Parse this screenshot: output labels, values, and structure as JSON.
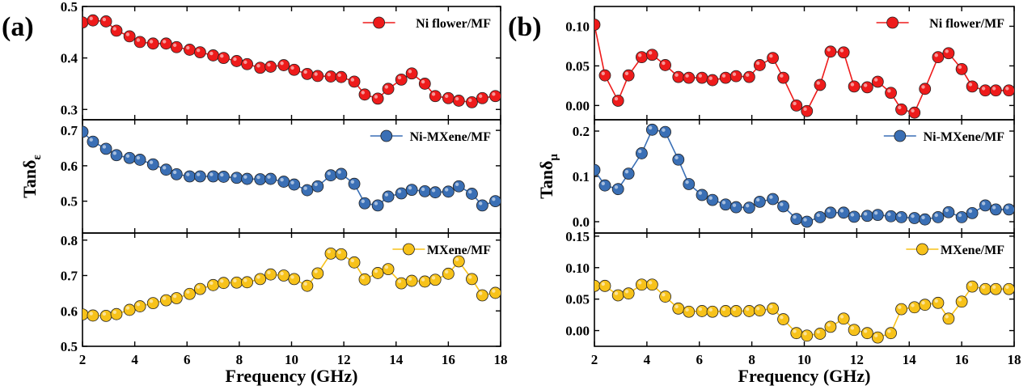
{
  "panels": [
    {
      "label": "(a)",
      "ylabel_main": "Tanδ",
      "ylabel_sub": "ε",
      "xlabel": "Frequency (GHz)"
    },
    {
      "label": "(b)",
      "ylabel_main": "Tanδ",
      "ylabel_sub": "μ",
      "xlabel": "Frequency (GHz)"
    }
  ],
  "colors": {
    "Ni flower/MF": "#ee1b1b",
    "Ni-MXene/MF": "#3a6fb5",
    "MXene/MF": "#f7c21a"
  },
  "chart_data": [
    {
      "type": "line",
      "panel": "(a)",
      "xlabel": "Frequency (GHz)",
      "xlim": [
        2,
        18
      ],
      "xticks": [
        2,
        4,
        6,
        8,
        10,
        12,
        14,
        16,
        18
      ],
      "subplots": [
        {
          "name": "Ni flower/MF",
          "ylim": [
            0.28,
            0.5
          ],
          "yticks": [
            "0.3",
            "0.4",
            "0.5"
          ],
          "legend": "top-right",
          "x": [
            2.0,
            2.4,
            2.9,
            3.3,
            3.8,
            4.2,
            4.7,
            5.2,
            5.6,
            6.1,
            6.5,
            7.0,
            7.4,
            7.9,
            8.3,
            8.8,
            9.2,
            9.7,
            10.1,
            10.6,
            11.0,
            11.5,
            11.9,
            12.4,
            12.8,
            13.3,
            13.7,
            14.2,
            14.6,
            15.1,
            15.5,
            16.0,
            16.4,
            16.9,
            17.3,
            17.8
          ],
          "values": [
            0.469,
            0.473,
            0.471,
            0.453,
            0.442,
            0.431,
            0.428,
            0.428,
            0.421,
            0.416,
            0.411,
            0.405,
            0.4,
            0.394,
            0.388,
            0.381,
            0.383,
            0.386,
            0.377,
            0.369,
            0.365,
            0.364,
            0.363,
            0.354,
            0.329,
            0.321,
            0.34,
            0.358,
            0.37,
            0.35,
            0.326,
            0.322,
            0.317,
            0.314,
            0.322,
            0.326
          ]
        },
        {
          "name": "Ni-MXene/MF",
          "ylim": [
            0.41,
            0.73
          ],
          "yticks": [
            "0.5",
            "0.6",
            "0.7"
          ],
          "legend": "top-right",
          "x": [
            2.0,
            2.4,
            2.9,
            3.3,
            3.8,
            4.2,
            4.7,
            5.2,
            5.6,
            6.1,
            6.5,
            7.0,
            7.4,
            7.9,
            8.3,
            8.8,
            9.2,
            9.7,
            10.1,
            10.6,
            11.0,
            11.5,
            11.9,
            12.4,
            12.8,
            13.3,
            13.7,
            14.2,
            14.6,
            15.1,
            15.5,
            16.0,
            16.4,
            16.9,
            17.3,
            17.8
          ],
          "values": [
            0.696,
            0.668,
            0.648,
            0.63,
            0.622,
            0.617,
            0.604,
            0.589,
            0.576,
            0.57,
            0.57,
            0.57,
            0.569,
            0.566,
            0.563,
            0.562,
            0.563,
            0.555,
            0.547,
            0.531,
            0.542,
            0.573,
            0.577,
            0.549,
            0.494,
            0.488,
            0.513,
            0.522,
            0.532,
            0.528,
            0.525,
            0.527,
            0.542,
            0.521,
            0.488,
            0.5
          ]
        },
        {
          "name": "MXene/MF",
          "ylim": [
            0.5,
            0.82
          ],
          "yticks": [
            "0.5",
            "0.6",
            "0.7",
            "0.8"
          ],
          "legend": "top-right",
          "x": [
            2.0,
            2.4,
            2.9,
            3.3,
            3.8,
            4.2,
            4.7,
            5.2,
            5.6,
            6.1,
            6.5,
            7.0,
            7.4,
            7.9,
            8.3,
            8.8,
            9.2,
            9.7,
            10.1,
            10.6,
            11.0,
            11.5,
            11.9,
            12.4,
            12.8,
            13.3,
            13.7,
            14.2,
            14.6,
            15.1,
            15.5,
            16.0,
            16.4,
            16.9,
            17.3,
            17.8
          ],
          "values": [
            0.59,
            0.587,
            0.586,
            0.591,
            0.603,
            0.613,
            0.622,
            0.63,
            0.636,
            0.648,
            0.662,
            0.673,
            0.679,
            0.68,
            0.681,
            0.69,
            0.703,
            0.7,
            0.69,
            0.671,
            0.706,
            0.762,
            0.76,
            0.737,
            0.689,
            0.707,
            0.718,
            0.678,
            0.685,
            0.683,
            0.688,
            0.705,
            0.74,
            0.69,
            0.644,
            0.651
          ]
        }
      ]
    },
    {
      "type": "line",
      "panel": "(b)",
      "xlabel": "Frequency (GHz)",
      "xlim": [
        2,
        18
      ],
      "xticks": [
        2,
        4,
        6,
        8,
        10,
        12,
        14,
        16,
        18
      ],
      "subplots": [
        {
          "name": "Ni flower/MF",
          "ylim": [
            -0.018,
            0.125
          ],
          "yticks": [
            "0.00",
            "0.05",
            "0.10"
          ],
          "legend": "top-right",
          "x": [
            2.0,
            2.4,
            2.9,
            3.3,
            3.8,
            4.2,
            4.7,
            5.2,
            5.6,
            6.1,
            6.5,
            7.0,
            7.4,
            7.9,
            8.3,
            8.8,
            9.2,
            9.7,
            10.1,
            10.6,
            11.0,
            11.5,
            11.9,
            12.4,
            12.8,
            13.3,
            13.7,
            14.2,
            14.6,
            15.1,
            15.5,
            16.0,
            16.4,
            16.9,
            17.3,
            17.8
          ],
          "values": [
            0.102,
            0.038,
            0.006,
            0.038,
            0.061,
            0.064,
            0.051,
            0.036,
            0.035,
            0.035,
            0.032,
            0.035,
            0.037,
            0.036,
            0.051,
            0.06,
            0.035,
            0.0,
            -0.007,
            0.026,
            0.068,
            0.067,
            0.024,
            0.023,
            0.03,
            0.016,
            -0.005,
            -0.009,
            0.021,
            0.061,
            0.066,
            0.046,
            0.024,
            0.019,
            0.019,
            0.019
          ]
        },
        {
          "name": "Ni-MXene/MF",
          "ylim": [
            -0.025,
            0.225
          ],
          "yticks": [
            "0.0",
            "0.1",
            "0.2"
          ],
          "legend": "top-right",
          "x": [
            2.0,
            2.4,
            2.9,
            3.3,
            3.8,
            4.2,
            4.7,
            5.2,
            5.6,
            6.1,
            6.5,
            7.0,
            7.4,
            7.9,
            8.3,
            8.8,
            9.2,
            9.7,
            10.1,
            10.6,
            11.0,
            11.5,
            11.9,
            12.4,
            12.8,
            13.3,
            13.7,
            14.2,
            14.6,
            15.1,
            15.5,
            16.0,
            16.4,
            16.9,
            17.3,
            17.8
          ],
          "values": [
            0.114,
            0.08,
            0.072,
            0.106,
            0.151,
            0.203,
            0.198,
            0.137,
            0.083,
            0.059,
            0.048,
            0.038,
            0.032,
            0.031,
            0.044,
            0.05,
            0.034,
            0.006,
            0.0,
            0.01,
            0.02,
            0.02,
            0.011,
            0.013,
            0.015,
            0.012,
            0.01,
            0.008,
            0.005,
            0.01,
            0.021,
            0.01,
            0.019,
            0.036,
            0.027,
            0.027
          ]
        },
        {
          "name": "MXene/MF",
          "ylim": [
            -0.025,
            0.155
          ],
          "yticks": [
            "0.00",
            "0.05",
            "0.10",
            "0.15"
          ],
          "legend": "top-right",
          "x": [
            2.0,
            2.4,
            2.9,
            3.3,
            3.8,
            4.2,
            4.7,
            5.2,
            5.6,
            6.1,
            6.5,
            7.0,
            7.4,
            7.9,
            8.3,
            8.8,
            9.2,
            9.7,
            10.1,
            10.6,
            11.0,
            11.5,
            11.9,
            12.4,
            12.8,
            13.3,
            13.7,
            14.2,
            14.6,
            15.1,
            15.5,
            16.0,
            16.4,
            16.9,
            17.3,
            17.8
          ],
          "values": [
            0.071,
            0.071,
            0.056,
            0.059,
            0.073,
            0.073,
            0.054,
            0.035,
            0.03,
            0.031,
            0.03,
            0.031,
            0.031,
            0.031,
            0.032,
            0.035,
            0.018,
            -0.004,
            -0.008,
            -0.005,
            0.006,
            0.019,
            0.001,
            -0.004,
            -0.011,
            -0.004,
            0.034,
            0.037,
            0.041,
            0.044,
            0.019,
            0.046,
            0.07,
            0.066,
            0.066,
            0.066
          ]
        }
      ]
    }
  ]
}
